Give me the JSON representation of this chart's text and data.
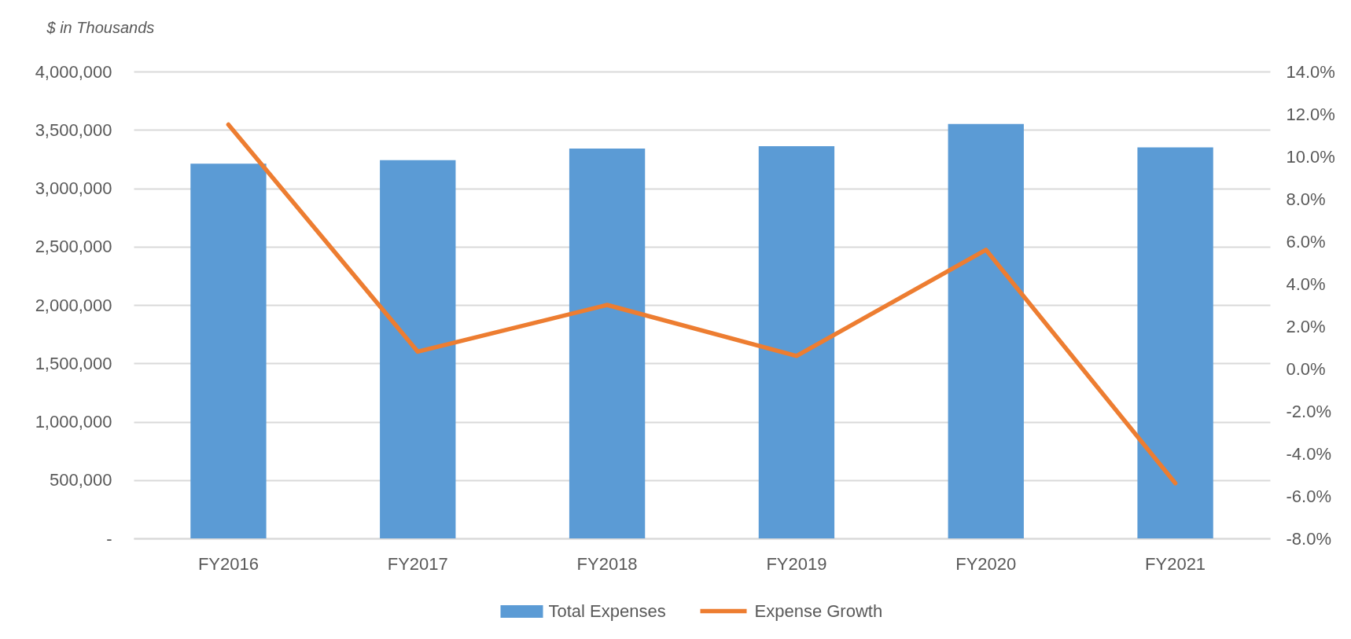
{
  "chart_data": {
    "type": "bar",
    "ylabel": "$ in Thousands",
    "categories": [
      "FY2016",
      "FY2017",
      "FY2018",
      "FY2019",
      "FY2020",
      "FY2021"
    ],
    "series": [
      {
        "name": "Total Expenses",
        "color": "#5b9bd5",
        "values": [
          3210000,
          3240000,
          3340000,
          3360000,
          3550000,
          3350000
        ]
      },
      {
        "name": "Expense Growth",
        "type": "line",
        "axis": "y2",
        "color": "#ed7d31",
        "values": [
          11.5,
          0.8,
          3.0,
          0.6,
          5.6,
          -5.4
        ]
      }
    ],
    "ylim": [
      0,
      4000000
    ],
    "yticks": [
      {
        "value": 0,
        "label": "-"
      },
      {
        "value": 500000,
        "label": "500,000"
      },
      {
        "value": 1000000,
        "label": "1,000,000"
      },
      {
        "value": 1500000,
        "label": "1,500,000"
      },
      {
        "value": 2000000,
        "label": "2,000,000"
      },
      {
        "value": 2500000,
        "label": "2,500,000"
      },
      {
        "value": 3000000,
        "label": "3,000,000"
      },
      {
        "value": 3500000,
        "label": "3,500,000"
      },
      {
        "value": 4000000,
        "label": "4,000,000"
      }
    ],
    "y2lim": [
      -8,
      14
    ],
    "y2ticks": [
      {
        "value": -8,
        "label": "-8.0%"
      },
      {
        "value": -6,
        "label": "-6.0%"
      },
      {
        "value": -4,
        "label": "-4.0%"
      },
      {
        "value": -2,
        "label": "-2.0%"
      },
      {
        "value": 0,
        "label": "0.0%"
      },
      {
        "value": 2,
        "label": "2.0%"
      },
      {
        "value": 4,
        "label": "4.0%"
      },
      {
        "value": 6,
        "label": "6.0%"
      },
      {
        "value": 8,
        "label": "8.0%"
      },
      {
        "value": 10,
        "label": "10.0%"
      },
      {
        "value": 12,
        "label": "12.0%"
      },
      {
        "value": 14,
        "label": "14.0%"
      }
    ],
    "grid": "y",
    "legend": "bottom"
  }
}
